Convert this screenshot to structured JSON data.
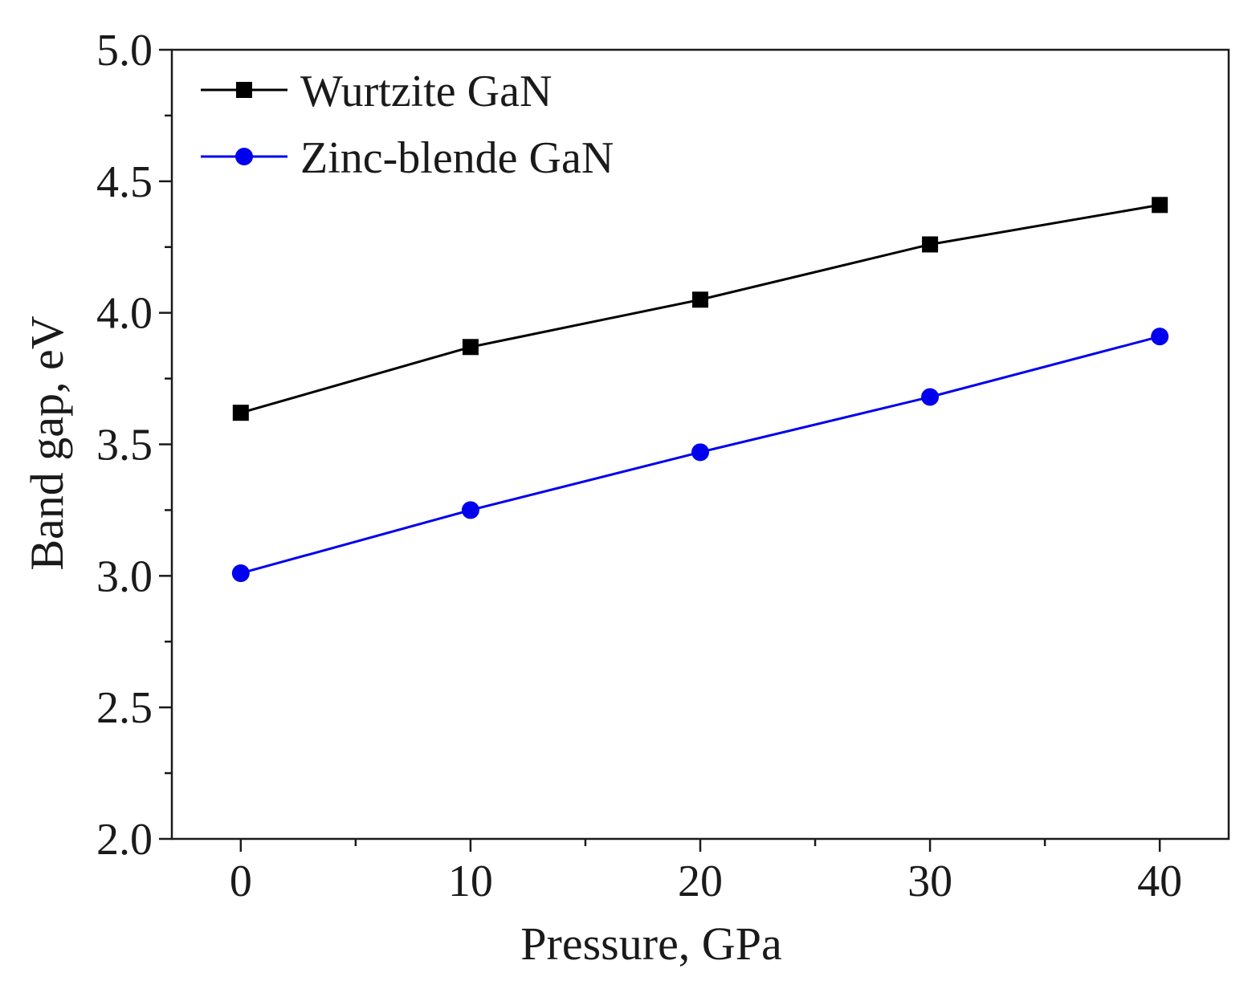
{
  "chart_data": {
    "type": "line",
    "title": "",
    "xlabel": "Pressure, GPa",
    "ylabel": "Band gap, eV",
    "xlim": [
      -3,
      43
    ],
    "ylim": [
      2.0,
      5.0
    ],
    "x": [
      0,
      10,
      20,
      30,
      40
    ],
    "x_tick_labels": [
      "0",
      "10",
      "20",
      "30",
      "40"
    ],
    "x_minor_ticks": [
      5,
      15,
      25,
      35
    ],
    "y_tick_labels": [
      "2.0",
      "2.5",
      "3.0",
      "3.5",
      "4.0",
      "4.5",
      "5.0"
    ],
    "y_tick_values": [
      2.0,
      2.5,
      3.0,
      3.5,
      4.0,
      4.5,
      5.0
    ],
    "y_minor_ticks": [
      2.25,
      2.75,
      3.25,
      3.75,
      4.25,
      4.75
    ],
    "grid": false,
    "legend_position": "top-left",
    "series": [
      {
        "name": "Wurtzite GaN",
        "marker": "square",
        "color": "#000000",
        "values": [
          3.62,
          3.87,
          4.05,
          4.26,
          4.41
        ]
      },
      {
        "name": "Zinc-blende GaN",
        "marker": "circle",
        "color": "#0000ee",
        "values": [
          3.01,
          3.25,
          3.47,
          3.68,
          3.91
        ]
      }
    ]
  }
}
